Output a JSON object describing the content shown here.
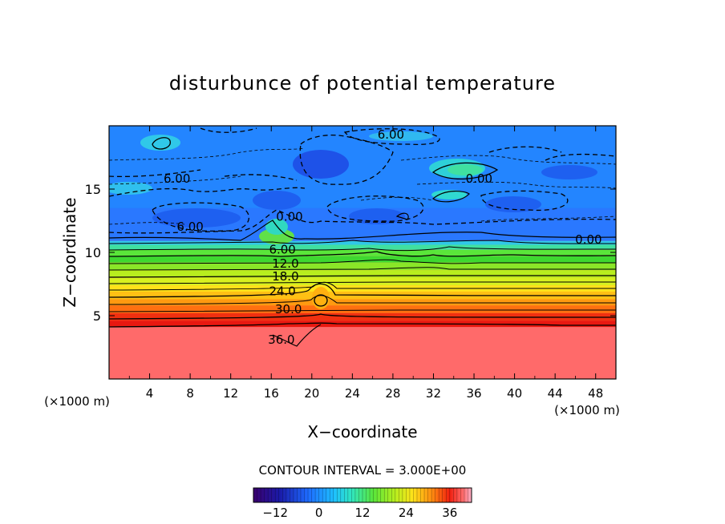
{
  "chart_data": {
    "type": "heatmap",
    "title": "disturbunce of potential temperature",
    "xlabel": "X−coordinate",
    "ylabel": "Z−coordinate",
    "x_unit": "(×1000 m)",
    "z_unit": "(×1000 m)",
    "xlim": [
      0,
      50
    ],
    "ylim": [
      0,
      20
    ],
    "x_ticks": [
      "4",
      "8",
      "12",
      "16",
      "20",
      "24",
      "28",
      "32",
      "36",
      "40",
      "44",
      "48"
    ],
    "y_ticks": [
      "5",
      "10",
      "15"
    ],
    "contour_interval_text": "CONTOUR INTERVAL = 3.000E+00",
    "colorbar_ticks": [
      "−12",
      "0",
      "12",
      "24",
      "36"
    ],
    "colorbar_range": [
      -18,
      42
    ],
    "contour_labels": [
      {
        "text": "6.00",
        "x": 27.8,
        "z": 19.0
      },
      {
        "text": "6.00",
        "x": 6.7,
        "z": 15.5
      },
      {
        "text": "6.00",
        "x": 8.0,
        "z": 11.7
      },
      {
        "text": "0.00",
        "x": 36.5,
        "z": 15.5
      },
      {
        "text": "0.00",
        "x": 17.8,
        "z": 12.5
      },
      {
        "text": "0.00",
        "x": 47.3,
        "z": 10.7
      },
      {
        "text": "6.00",
        "x": 17.1,
        "z": 9.9
      },
      {
        "text": "12.0",
        "x": 17.4,
        "z": 8.8
      },
      {
        "text": "18.0",
        "x": 17.4,
        "z": 7.8
      },
      {
        "text": "24.0",
        "x": 17.1,
        "z": 6.6
      },
      {
        "text": "30.0",
        "x": 17.7,
        "z": 5.2
      },
      {
        "text": "36.0",
        "x": 17.0,
        "z": 2.8
      }
    ]
  }
}
